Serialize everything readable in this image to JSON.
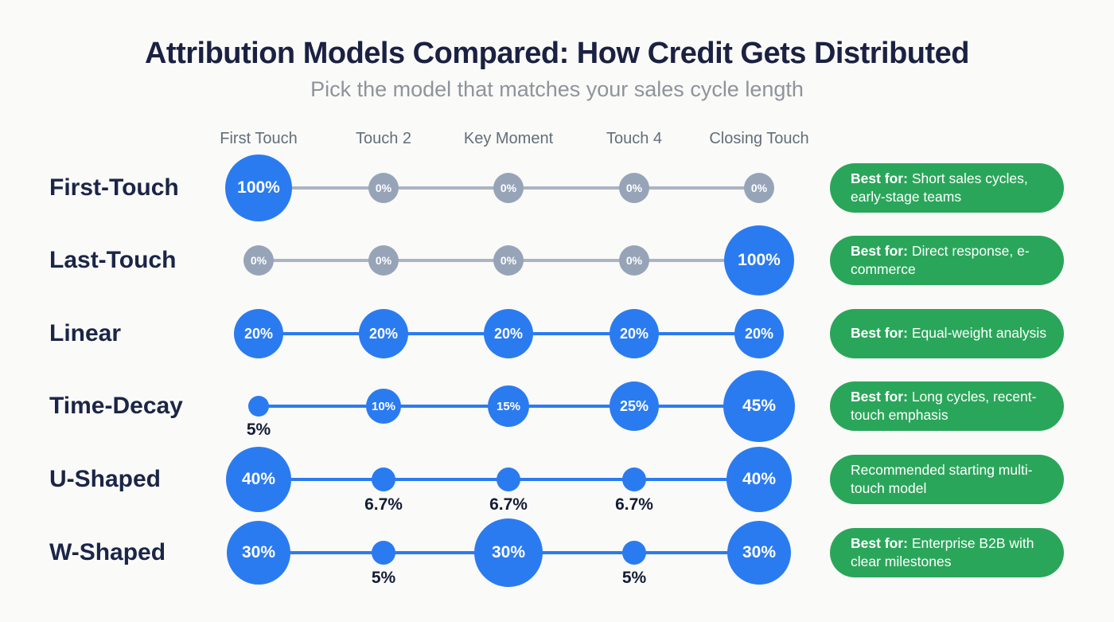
{
  "title": "Attribution Models Compared: How Credit Gets Distributed",
  "subtitle": "Pick the model that matches your sales cycle length",
  "colors": {
    "background": "#fafaf8",
    "accent_blue": "#2b7bf0",
    "node_gray": "#97a4b8",
    "line_gray": "#aab4c3",
    "badge_green": "#2aa65a",
    "navy_text": "#1b2547",
    "subtitle_gray": "#8f939b"
  },
  "chart_data": {
    "type": "bubble-matrix",
    "categories": [
      "First Touch",
      "Touch 2",
      "Key Moment",
      "Touch 4",
      "Closing Touch"
    ],
    "legend_position": "none",
    "grid": false,
    "rows": [
      {
        "label": "First-Touch",
        "line_color": "gray",
        "badge": {
          "bold": "Best for:",
          "text": "Short sales cycles, early-stage teams"
        },
        "points": [
          {
            "value": "100%",
            "pct": 100,
            "style": "blue",
            "d": 84,
            "below": false
          },
          {
            "value": "0%",
            "pct": 0,
            "style": "gray",
            "d": 38,
            "below": false
          },
          {
            "value": "0%",
            "pct": 0,
            "style": "gray",
            "d": 38,
            "below": false
          },
          {
            "value": "0%",
            "pct": 0,
            "style": "gray",
            "d": 38,
            "below": false
          },
          {
            "value": "0%",
            "pct": 0,
            "style": "gray",
            "d": 38,
            "below": false
          }
        ]
      },
      {
        "label": "Last-Touch",
        "line_color": "gray",
        "badge": {
          "bold": "Best for:",
          "text": "Direct response, e-commerce"
        },
        "points": [
          {
            "value": "0%",
            "pct": 0,
            "style": "gray",
            "d": 38,
            "below": false
          },
          {
            "value": "0%",
            "pct": 0,
            "style": "gray",
            "d": 38,
            "below": false
          },
          {
            "value": "0%",
            "pct": 0,
            "style": "gray",
            "d": 38,
            "below": false
          },
          {
            "value": "0%",
            "pct": 0,
            "style": "gray",
            "d": 38,
            "below": false
          },
          {
            "value": "100%",
            "pct": 100,
            "style": "blue",
            "d": 88,
            "below": false
          }
        ]
      },
      {
        "label": "Linear",
        "line_color": "blue",
        "badge": {
          "bold": "Best for:",
          "text": "Equal-weight analysis"
        },
        "points": [
          {
            "value": "20%",
            "pct": 20,
            "style": "blue",
            "d": 62,
            "below": false
          },
          {
            "value": "20%",
            "pct": 20,
            "style": "blue",
            "d": 62,
            "below": false
          },
          {
            "value": "20%",
            "pct": 20,
            "style": "blue",
            "d": 62,
            "below": false
          },
          {
            "value": "20%",
            "pct": 20,
            "style": "blue",
            "d": 62,
            "below": false
          },
          {
            "value": "20%",
            "pct": 20,
            "style": "blue",
            "d": 62,
            "below": false
          }
        ]
      },
      {
        "label": "Time-Decay",
        "line_color": "blue",
        "badge": {
          "bold": "Best for:",
          "text": "Long cycles, recent-touch emphasis"
        },
        "points": [
          {
            "value": "5%",
            "pct": 5,
            "style": "blue",
            "d": 26,
            "below": true
          },
          {
            "value": "10%",
            "pct": 10,
            "style": "blue",
            "d": 44,
            "below": false
          },
          {
            "value": "15%",
            "pct": 15,
            "style": "blue",
            "d": 52,
            "below": false
          },
          {
            "value": "25%",
            "pct": 25,
            "style": "blue",
            "d": 62,
            "below": false
          },
          {
            "value": "45%",
            "pct": 45,
            "style": "blue",
            "d": 90,
            "below": false
          }
        ]
      },
      {
        "label": "U-Shaped",
        "line_color": "blue",
        "badge": {
          "bold": "",
          "text": "Recommended starting multi-touch model"
        },
        "points": [
          {
            "value": "40%",
            "pct": 40,
            "style": "blue",
            "d": 82,
            "below": false
          },
          {
            "value": "6.7%",
            "pct": 6.7,
            "style": "blue",
            "d": 30,
            "below": true
          },
          {
            "value": "6.7%",
            "pct": 6.7,
            "style": "blue",
            "d": 30,
            "below": true
          },
          {
            "value": "6.7%",
            "pct": 6.7,
            "style": "blue",
            "d": 30,
            "below": true
          },
          {
            "value": "40%",
            "pct": 40,
            "style": "blue",
            "d": 82,
            "below": false
          }
        ]
      },
      {
        "label": "W-Shaped",
        "line_color": "blue",
        "badge": {
          "bold": "Best for:",
          "text": "Enterprise B2B with clear milestones"
        },
        "points": [
          {
            "value": "30%",
            "pct": 30,
            "style": "blue",
            "d": 80,
            "below": false
          },
          {
            "value": "5%",
            "pct": 5,
            "style": "blue",
            "d": 30,
            "below": true
          },
          {
            "value": "30%",
            "pct": 30,
            "style": "blue",
            "d": 86,
            "below": false
          },
          {
            "value": "5%",
            "pct": 5,
            "style": "blue",
            "d": 30,
            "below": true
          },
          {
            "value": "30%",
            "pct": 30,
            "style": "blue",
            "d": 80,
            "below": false
          }
        ]
      }
    ]
  }
}
